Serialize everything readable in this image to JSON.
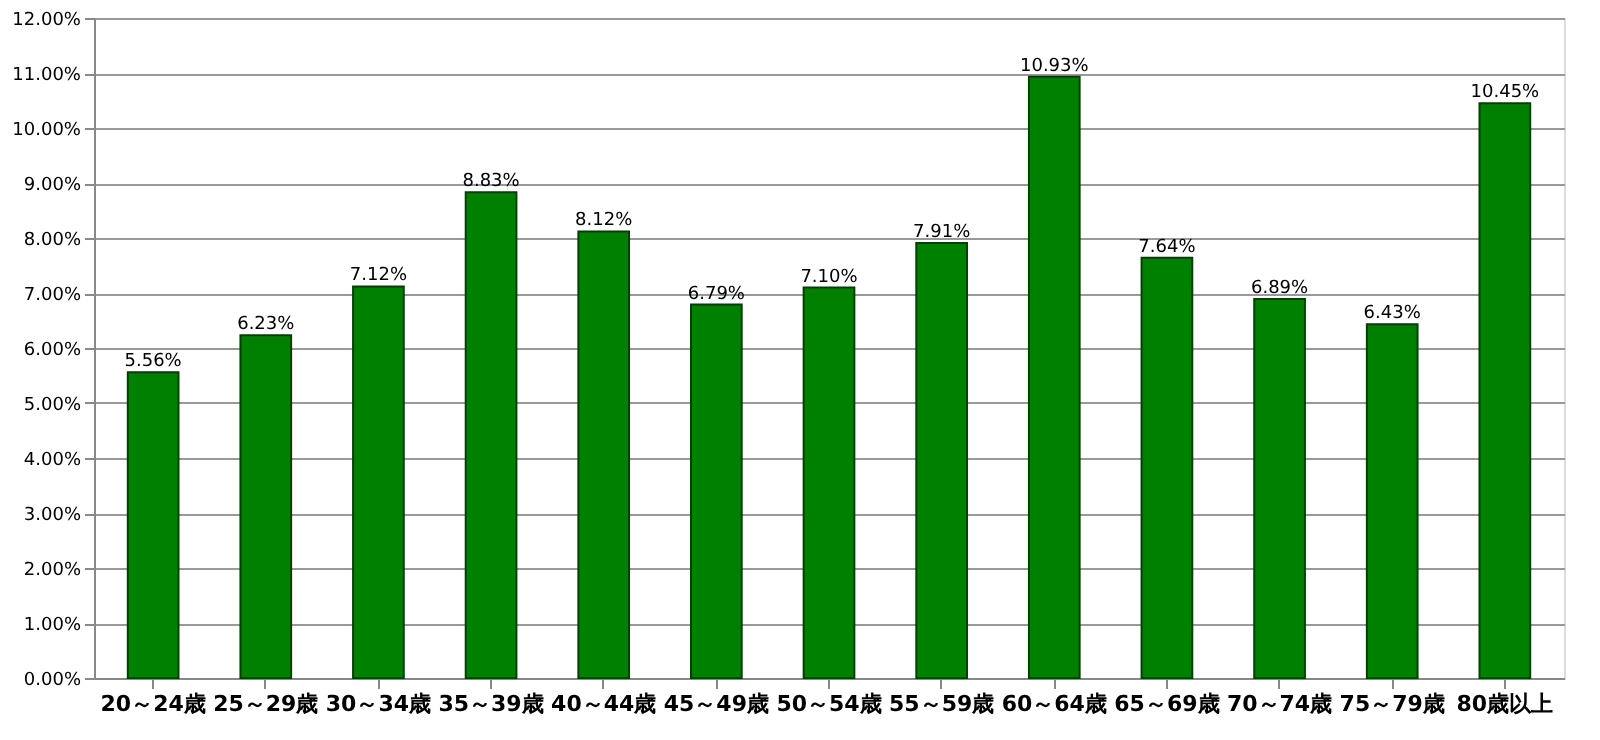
{
  "chart_data": {
    "type": "bar",
    "categories": [
      "20～24歳",
      "25～29歳",
      "30～34歳",
      "35～39歳",
      "40～44歳",
      "45～49歳",
      "50～54歳",
      "55～59歳",
      "60～64歳",
      "65～69歳",
      "70～74歳",
      "75～79歳",
      "80歳以上"
    ],
    "values": [
      5.56,
      6.23,
      7.12,
      8.83,
      8.12,
      6.79,
      7.1,
      7.91,
      10.93,
      7.64,
      6.89,
      6.43,
      10.45
    ],
    "value_labels": [
      "5.56%",
      "6.23%",
      "7.12%",
      "8.83%",
      "8.12%",
      "6.79%",
      "7.10%",
      "7.91%",
      "10.93%",
      "7.64%",
      "6.89%",
      "6.43%",
      "10.45%"
    ],
    "color": "#008000",
    "ylim": [
      0,
      12
    ],
    "yticks": [
      {
        "value": 0,
        "label": "0.00%"
      },
      {
        "value": 1,
        "label": "1.00%"
      },
      {
        "value": 2,
        "label": "2.00%"
      },
      {
        "value": 3,
        "label": "3.00%"
      },
      {
        "value": 4,
        "label": "4.00%"
      },
      {
        "value": 5,
        "label": "5.00%"
      },
      {
        "value": 6,
        "label": "6.00%"
      },
      {
        "value": 7,
        "label": "7.00%"
      },
      {
        "value": 8,
        "label": "8.00%"
      },
      {
        "value": 9,
        "label": "9.00%"
      },
      {
        "value": 10,
        "label": "10.00%"
      },
      {
        "value": 11,
        "label": "11.00%"
      },
      {
        "value": 12,
        "label": "12.00%"
      }
    ],
    "grid": "y"
  }
}
